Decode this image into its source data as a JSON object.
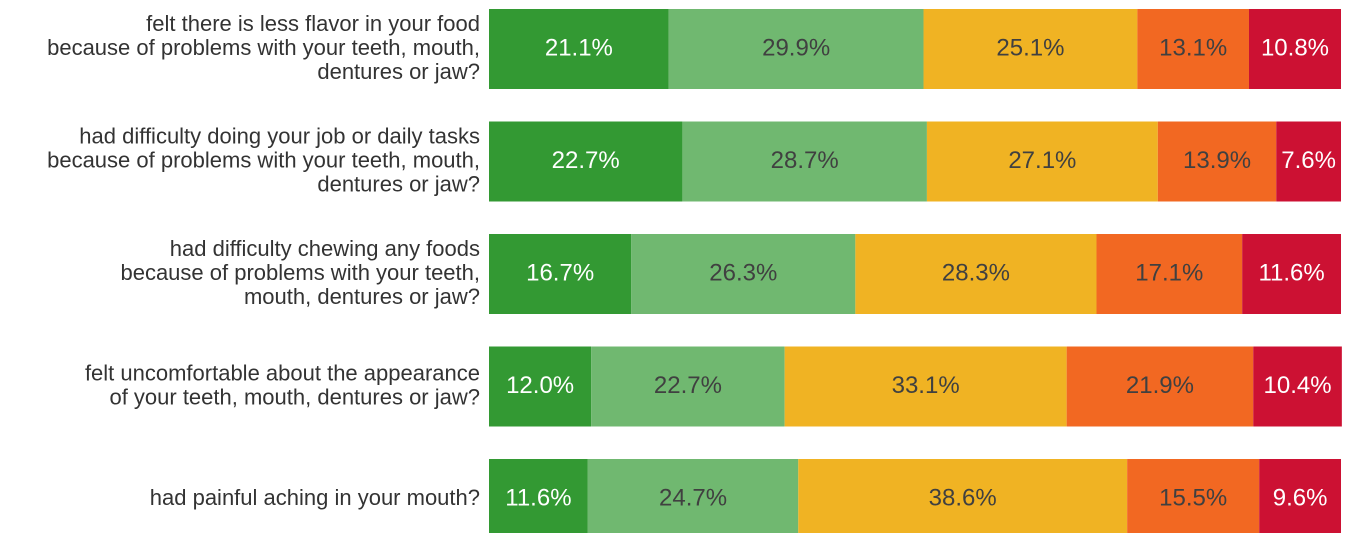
{
  "chart_data": {
    "type": "bar",
    "orientation": "horizontal",
    "stacked": true,
    "normalized": true,
    "title": "",
    "xlabel": "",
    "ylabel": "",
    "xlim": [
      0,
      100
    ],
    "grid": false,
    "legend": "none",
    "categories": [
      [
        "felt there is less flavor in your food",
        "because of problems with your teeth, mouth,",
        "dentures or jaw?"
      ],
      [
        "had difficulty doing your job or daily tasks",
        "because of problems with your teeth, mouth,",
        "dentures or jaw?"
      ],
      [
        "had difficulty chewing any foods",
        "because of problems with your teeth,",
        "mouth, dentures or jaw?"
      ],
      [
        "felt uncomfortable about the appearance",
        "of your teeth, mouth, dentures or jaw?"
      ],
      [
        "had painful aching in your mouth?"
      ]
    ],
    "series": [
      {
        "color": "#339933",
        "label_color": "#ffffff",
        "values": [
          21.1,
          22.7,
          16.7,
          12.0,
          11.6
        ],
        "labels": [
          "21.1%",
          "22.7%",
          "16.7%",
          "12.0%",
          "11.6%"
        ]
      },
      {
        "color": "#70b870",
        "label_color": "#404040",
        "values": [
          29.9,
          28.7,
          26.3,
          22.7,
          24.7
        ],
        "labels": [
          "29.9%",
          "28.7%",
          "26.3%",
          "22.7%",
          "24.7%"
        ]
      },
      {
        "color": "#f0b323",
        "label_color": "#404040",
        "values": [
          25.1,
          27.1,
          28.3,
          33.1,
          38.6
        ],
        "labels": [
          "25.1%",
          "27.1%",
          "28.3%",
          "33.1%",
          "38.6%"
        ]
      },
      {
        "color": "#f26822",
        "label_color": "#404040",
        "values": [
          13.1,
          13.9,
          17.1,
          21.9,
          15.5
        ],
        "labels": [
          "13.1%",
          "13.9%",
          "17.1%",
          "21.9%",
          "15.5%"
        ]
      },
      {
        "color": "#cc1133",
        "label_color": "#ffffff",
        "values": [
          10.8,
          7.6,
          11.6,
          10.4,
          9.6
        ],
        "labels": [
          "10.8%",
          "7.6%",
          "11.6%",
          "10.4%",
          "9.6%"
        ]
      }
    ]
  }
}
